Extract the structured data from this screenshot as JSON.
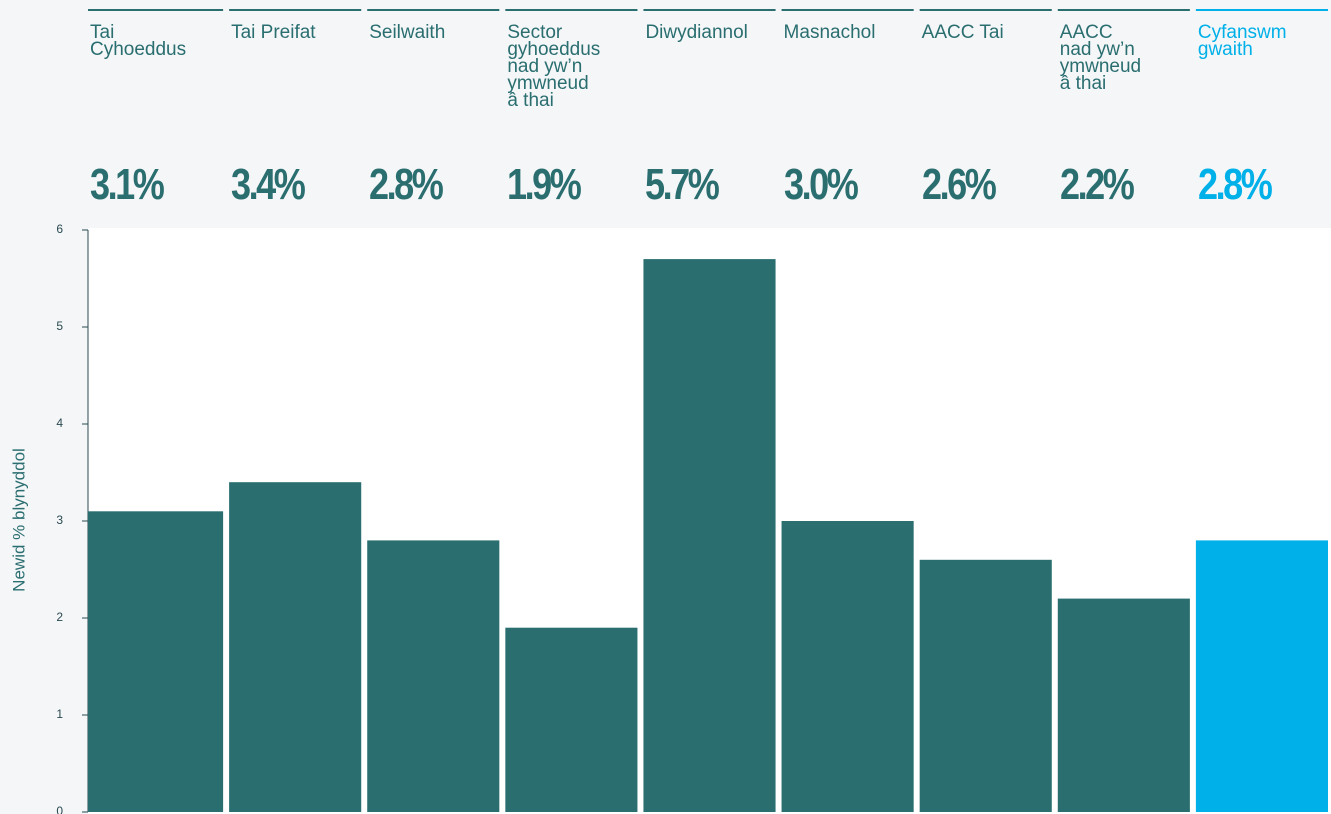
{
  "chart_data": {
    "type": "bar",
    "categories": [
      "Tai\nCyhoeddus",
      "Tai Preifat",
      "Seilwaith",
      "Sector\ngyhoeddus\nnad yw’n\nymwneud\nâ thai",
      "Diwydiannol",
      "Masnachol",
      "AACC Tai",
      "AACC\nnad yw’n\nymwneud\nâ thai",
      "Cyfanswm\ngwaith"
    ],
    "values": [
      3.1,
      3.4,
      2.8,
      1.9,
      5.7,
      3.0,
      2.6,
      2.2,
      2.8
    ],
    "value_labels": [
      "3.1%",
      "3.4%",
      "2.8%",
      "1.9%",
      "5.7%",
      "3.0%",
      "2.6%",
      "2.2%",
      "2.8%"
    ],
    "colors": [
      "#2a6e70",
      "#2a6e70",
      "#2a6e70",
      "#2a6e70",
      "#2a6e70",
      "#2a6e70",
      "#2a6e70",
      "#2a6e70",
      "#00b0e8"
    ],
    "y_label": "Newid % blynyddol",
    "ylim": [
      0,
      6
    ],
    "yticks": [
      0,
      1,
      2,
      3,
      4,
      5,
      6
    ]
  }
}
